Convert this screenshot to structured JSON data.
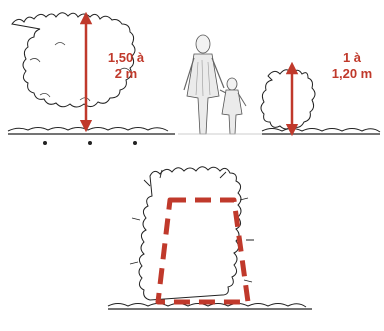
{
  "annotations": {
    "tall_hedge_height": "1,50 à\n2 m",
    "short_hedge_height": "1 à\n1,20 m"
  },
  "colors": {
    "accent": "#c0392b",
    "ink": "#222222",
    "sketch_fill": "#f2f2f2"
  },
  "icons": {
    "figures": "adult-and-child-figures-icon"
  }
}
